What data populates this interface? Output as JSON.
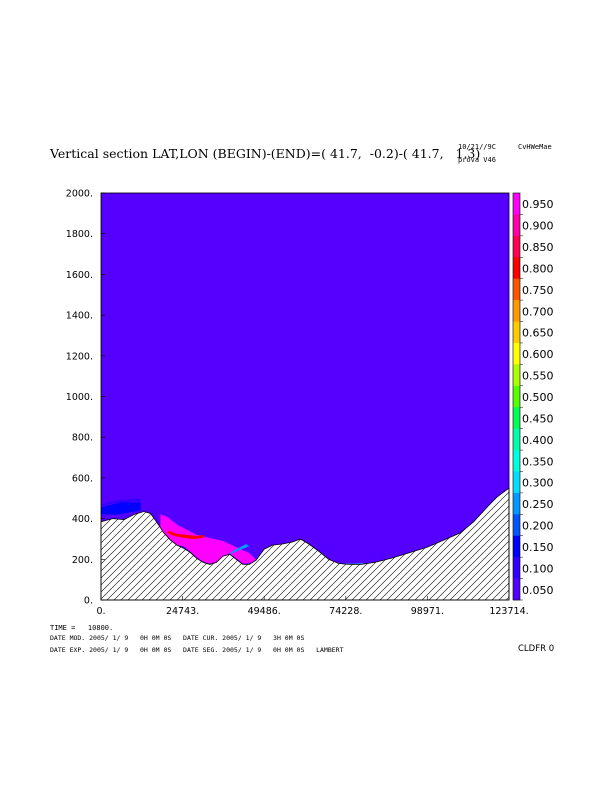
{
  "header": {
    "title": "Vertical section LAT,LON (BEGIN)-(END)=( 41.7,  -0.2)-( 41.7,   1.3)",
    "date_run": "10/21//9C",
    "model_name": "CvHWeMae",
    "experiment": "prova V46"
  },
  "footer": {
    "time_line": "TIME =   10800.",
    "line1": "DATE MOD. 2005/ 1/ 9   0H 0M 0S   DATE CUR. 2005/ 1/ 9   3H 0M 0S",
    "line2": "DATE EXP. 2005/ 1/ 9   0H 0M 0S   DATE SEG. 2005/ 1/ 9   0H 0M 0S   LAMBERT",
    "variable": "CLDFR 0"
  },
  "chart_data": {
    "type": "heatmap",
    "title": "Vertical section LAT,LON (BEGIN)-(END)=( 41.7,  -0.2)-( 41.7,   1.3)",
    "xlabel": "",
    "ylabel": "",
    "xlim": [
      0,
      123714
    ],
    "ylim": [
      0,
      2000
    ],
    "x_ticks": [
      "0.",
      "24743.",
      "49486.",
      "74228.",
      "98971.",
      "123714."
    ],
    "y_ticks": [
      "0.",
      "200.",
      "400.",
      "600.",
      "800.",
      "1000.",
      "1200.",
      "1400.",
      "1600.",
      "1800.",
      "2000."
    ],
    "background_value": 0.0,
    "background_color": "#5500ff",
    "colorbar": {
      "labels": [
        "0.950",
        "0.900",
        "0.850",
        "0.800",
        "0.750",
        "0.700",
        "0.650",
        "0.600",
        "0.550",
        "0.500",
        "0.450",
        "0.400",
        "0.350",
        "0.300",
        "0.250",
        "0.200",
        "0.150",
        "0.100",
        "0.050"
      ],
      "colors": [
        "#ff00ff",
        "#ff00aa",
        "#ff0055",
        "#ff0000",
        "#ff5500",
        "#ff9900",
        "#ffcc00",
        "#ffff00",
        "#aaff00",
        "#55ff00",
        "#00ff55",
        "#00ffaa",
        "#00ffdd",
        "#00ddff",
        "#0099ff",
        "#0055ff",
        "#0000ff",
        "#3300ff",
        "#5500ff"
      ]
    },
    "terrain": [
      [
        0,
        385
      ],
      [
        3500,
        400
      ],
      [
        7000,
        395
      ],
      [
        10000,
        420
      ],
      [
        13000,
        435
      ],
      [
        15000,
        425
      ],
      [
        17000,
        380
      ],
      [
        19000,
        330
      ],
      [
        21000,
        295
      ],
      [
        23000,
        270
      ],
      [
        25000,
        255
      ],
      [
        27000,
        235
      ],
      [
        29000,
        205
      ],
      [
        31000,
        185
      ],
      [
        33000,
        175
      ],
      [
        35000,
        185
      ],
      [
        37000,
        215
      ],
      [
        39000,
        225
      ],
      [
        41000,
        200
      ],
      [
        43000,
        175
      ],
      [
        45000,
        175
      ],
      [
        47000,
        195
      ],
      [
        49486,
        250
      ],
      [
        52000,
        270
      ],
      [
        55000,
        275
      ],
      [
        58000,
        285
      ],
      [
        60500,
        300
      ],
      [
        63000,
        275
      ],
      [
        66000,
        240
      ],
      [
        69000,
        200
      ],
      [
        72000,
        180
      ],
      [
        75000,
        175
      ],
      [
        79000,
        175
      ],
      [
        83000,
        185
      ],
      [
        88000,
        205
      ],
      [
        93000,
        230
      ],
      [
        98971,
        260
      ],
      [
        104000,
        295
      ],
      [
        109000,
        330
      ],
      [
        113000,
        385
      ],
      [
        117000,
        455
      ],
      [
        120000,
        505
      ],
      [
        123714,
        550
      ]
    ],
    "cloud_regions": [
      {
        "value": 0.15,
        "points": [
          [
            0,
            455
          ],
          [
            6000,
            480
          ],
          [
            12000,
            480
          ],
          [
            12000,
            440
          ],
          [
            5000,
            420
          ],
          [
            0,
            420
          ]
        ]
      },
      {
        "value": 0.1,
        "points": [
          [
            0,
            470
          ],
          [
            4500,
            490
          ],
          [
            12000,
            500
          ],
          [
            12000,
            485
          ],
          [
            5000,
            480
          ],
          [
            0,
            460
          ]
        ]
      },
      {
        "value": 0.95,
        "points": [
          [
            22000,
            270
          ],
          [
            25000,
            265
          ],
          [
            27000,
            240
          ],
          [
            29000,
            210
          ],
          [
            31000,
            188
          ],
          [
            33000,
            178
          ],
          [
            35000,
            188
          ],
          [
            37000,
            215
          ],
          [
            39000,
            228
          ],
          [
            41000,
            205
          ],
          [
            43000,
            180
          ],
          [
            45000,
            180
          ],
          [
            47000,
            198
          ],
          [
            45000,
            230
          ],
          [
            41000,
            260
          ],
          [
            37000,
            290
          ],
          [
            33000,
            305
          ],
          [
            29000,
            320
          ],
          [
            26000,
            345
          ],
          [
            23000,
            370
          ],
          [
            20000,
            410
          ],
          [
            18000,
            420
          ],
          [
            18000,
            345
          ],
          [
            20000,
            310
          ]
        ]
      },
      {
        "value": 0.8,
        "points": [
          [
            20500,
            340
          ],
          [
            23000,
            325
          ],
          [
            26000,
            320
          ],
          [
            29000,
            315
          ],
          [
            31000,
            320
          ],
          [
            31000,
            305
          ],
          [
            28000,
            300
          ],
          [
            25000,
            305
          ],
          [
            22000,
            315
          ],
          [
            20000,
            330
          ]
        ]
      },
      {
        "value": 0.25,
        "points": [
          [
            38500,
            225
          ],
          [
            41000,
            250
          ],
          [
            44000,
            275
          ],
          [
            45000,
            265
          ],
          [
            42000,
            245
          ],
          [
            39500,
            228
          ]
        ]
      },
      {
        "value": 0.3,
        "points": [
          [
            47000,
            200
          ],
          [
            48500,
            230
          ],
          [
            49300,
            245
          ],
          [
            48000,
            210
          ]
        ]
      },
      {
        "value": 0.3,
        "points": [
          [
            72000,
            180
          ],
          [
            76000,
            178
          ],
          [
            80000,
            180
          ],
          [
            80000,
            176
          ],
          [
            76000,
            173
          ],
          [
            72000,
            176
          ]
        ]
      }
    ]
  }
}
